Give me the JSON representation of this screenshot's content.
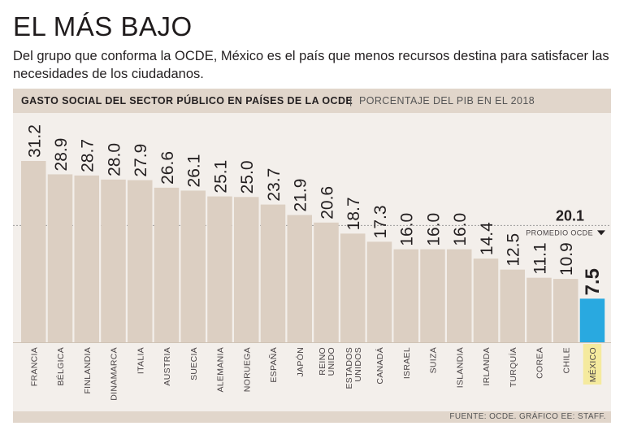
{
  "title": "EL MÁS BAJO",
  "subtitle": "Del grupo que conforma la OCDE, México es el país que menos recursos destina para satisfacer las necesidades de los ciudadanos.",
  "chart_header": {
    "title": "GASTO SOCIAL DEL SECTOR PÚBLICO EN PAÍSES DE LA OCDE",
    "separator": "|",
    "subtitle": "PORCENTAJE DEL PIB EN EL 2018"
  },
  "footer": {
    "source": "FUENTE: OCDE. GRÁFICO EE: STAFF."
  },
  "colors": {
    "bar": "#dccfc2",
    "highlight": "#29a9e0",
    "highlight_label_bg": "#f5ea9e",
    "reference": "#9a9a9a",
    "text": "#231f20"
  },
  "chart_data": {
    "type": "bar",
    "title": "GASTO SOCIAL DEL SECTOR PÚBLICO EN PAÍSES DE LA OCDE",
    "ylabel": "PORCENTAJE DEL PIB EN EL 2018",
    "xlabel": "",
    "ylim": [
      0,
      33
    ],
    "categories": [
      [
        "FRANCIA"
      ],
      [
        "BÉLGICA"
      ],
      [
        "FINLANDIA"
      ],
      [
        "DINAMARCA"
      ],
      [
        "ITALIA"
      ],
      [
        "AUSTRIA"
      ],
      [
        "SUECIA"
      ],
      [
        "ALEMANIA"
      ],
      [
        "NORUEGA"
      ],
      [
        "ESPAÑA"
      ],
      [
        "JAPÓN"
      ],
      [
        "REINO",
        "UNIDO"
      ],
      [
        "ESTADOS",
        "UNIDOS"
      ],
      [
        "CANADÁ"
      ],
      [
        "ISRAEL"
      ],
      [
        "SUIZA"
      ],
      [
        "ISLANDIA"
      ],
      [
        "IRLANDA"
      ],
      [
        "TURQUÍA"
      ],
      [
        "COREA"
      ],
      [
        "CHILE"
      ],
      [
        "MÉXICO"
      ]
    ],
    "values": [
      31.2,
      28.9,
      28.7,
      28.0,
      27.9,
      26.6,
      26.1,
      25.1,
      25.0,
      23.7,
      21.9,
      20.6,
      18.7,
      17.3,
      16.0,
      16.0,
      16.0,
      14.4,
      12.5,
      11.1,
      10.9,
      7.5
    ],
    "value_labels": [
      "31.2",
      "28.9",
      "28.7",
      "28.0",
      "27.9",
      "26.6",
      "26.1",
      "25.1",
      "25.0",
      "23.7",
      "21.9",
      "20.6",
      "18.7",
      "17.3",
      "16.0",
      "16.0",
      "16.0",
      "14.4",
      "12.5",
      "11.1",
      "10.9",
      "7.5"
    ],
    "highlight_index": 21,
    "reference_line": {
      "value": 20.1,
      "value_label": "20.1",
      "label": "PROMEDIO OCDE"
    }
  }
}
